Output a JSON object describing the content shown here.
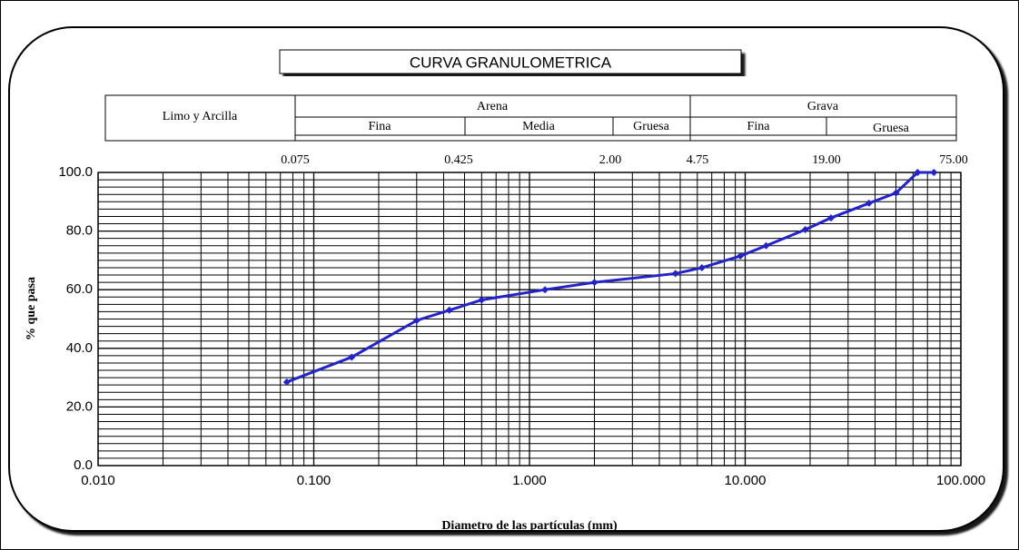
{
  "chart_data": {
    "type": "line",
    "title": "CURVA GRANULOMETRICA",
    "header": {
      "left": "Limo y Arcilla",
      "groups": [
        {
          "name": "Arena",
          "parts": [
            "Fina",
            "Media",
            "Gruesa"
          ]
        },
        {
          "name": "Grava",
          "parts": [
            "Fina",
            "Gruesa"
          ]
        }
      ],
      "sieve_labels": [
        "0.075",
        "0.425",
        "2.00",
        "4.75",
        "19.00",
        "75.00"
      ]
    },
    "x_label": "Diametro de las partículas (mm)",
    "y_label": "% que pasa",
    "x_log": true,
    "grid": true,
    "xlim": [
      0.01,
      100
    ],
    "xticks": [
      {
        "value": 0.01,
        "label": "0.010"
      },
      {
        "value": 0.1,
        "label": "0.100"
      },
      {
        "value": 1,
        "label": "1.000"
      },
      {
        "value": 10,
        "label": "10.000"
      },
      {
        "value": 100,
        "label": "100.000"
      }
    ],
    "ylim": [
      0,
      100
    ],
    "yticks": [
      {
        "value": 0,
        "label": "0.0"
      },
      {
        "value": 20,
        "label": "20.0"
      },
      {
        "value": 40,
        "label": "40.0"
      },
      {
        "value": 60,
        "label": "60.0"
      },
      {
        "value": 80,
        "label": "80.0"
      },
      {
        "value": 100,
        "label": "100.0"
      }
    ],
    "x": [
      0.075,
      0.15,
      0.3,
      0.425,
      0.6,
      1.18,
      2.0,
      4.75,
      6.3,
      9.5,
      12.5,
      19,
      25,
      37.5,
      50,
      63,
      75
    ],
    "series": [
      {
        "name": "% que pasa",
        "color": "#2323c8",
        "values": [
          28.5,
          37,
          49.5,
          53,
          56.5,
          60,
          62.5,
          65.5,
          67.5,
          71.5,
          75,
          80.5,
          84.5,
          89.5,
          93,
          100,
          100
        ]
      }
    ]
  }
}
